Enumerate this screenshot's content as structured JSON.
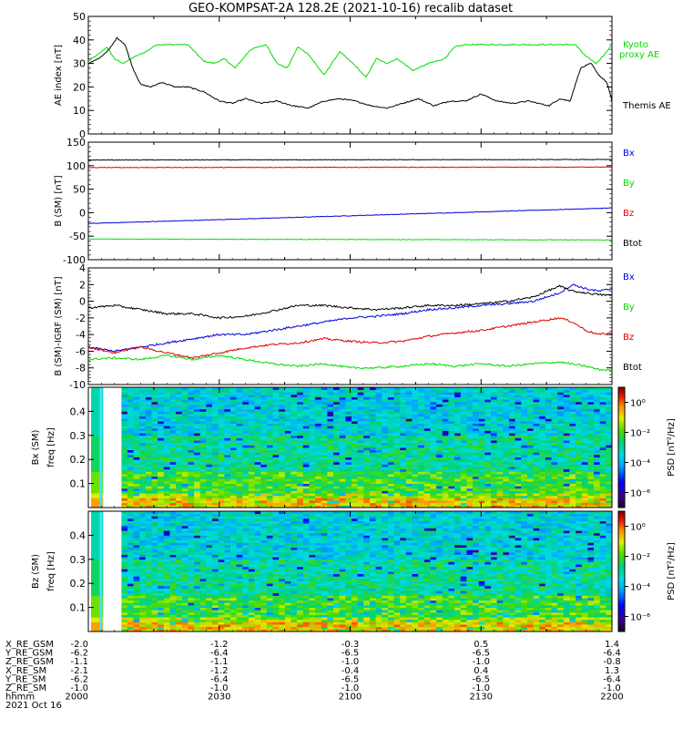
{
  "title": "GEO-KOMPSAT-2A 128.2E (2021-10-16) recalib dataset",
  "colors": {
    "black": "#000000",
    "green": "#00dd00",
    "blue": "#0000dd",
    "red": "#dd0000"
  },
  "chart_data": [
    {
      "id": "ae",
      "type": "line",
      "ylabel": "AE index [nT]",
      "ylim": [
        0,
        50
      ],
      "yticks": [
        0,
        10,
        20,
        30,
        40,
        50
      ],
      "x": [
        0,
        0.25,
        0.5,
        0.75,
        1.0,
        1.25,
        1.5,
        1.75,
        2.0
      ],
      "series": [
        {
          "name": "Kyoto proxy AE",
          "color": "green",
          "labelLines": [
            "Kyoto",
            "proxy AE"
          ],
          "x": [
            0,
            0.04,
            0.07,
            0.1,
            0.13,
            0.18,
            0.22,
            0.26,
            0.32,
            0.38,
            0.44,
            0.48,
            0.52,
            0.56,
            0.62,
            0.68,
            0.72,
            0.76,
            0.8,
            0.84,
            0.9,
            0.96,
            1.02,
            1.06,
            1.1,
            1.14,
            1.18,
            1.24,
            1.3,
            1.36,
            1.4,
            1.44,
            1.5,
            1.56,
            1.62,
            1.68,
            1.74,
            1.8,
            1.86,
            1.9,
            1.94,
            1.98,
            2.0
          ],
          "y": [
            31,
            34,
            37,
            32,
            30,
            33,
            35,
            38,
            38,
            38,
            31,
            30,
            32,
            28,
            36,
            38,
            30,
            28,
            37,
            34,
            25,
            35,
            29,
            24,
            32,
            30,
            32,
            27,
            30,
            32,
            37,
            38,
            38,
            38,
            38,
            38,
            38,
            38,
            38,
            33,
            30,
            35,
            38
          ]
        },
        {
          "name": "Themis AE",
          "color": "black",
          "labelLines": [
            "Themis AE"
          ],
          "x": [
            0,
            0.04,
            0.08,
            0.11,
            0.14,
            0.17,
            0.2,
            0.24,
            0.28,
            0.33,
            0.38,
            0.44,
            0.5,
            0.55,
            0.6,
            0.66,
            0.72,
            0.78,
            0.84,
            0.9,
            0.96,
            1.02,
            1.08,
            1.14,
            1.2,
            1.26,
            1.32,
            1.38,
            1.44,
            1.5,
            1.56,
            1.62,
            1.68,
            1.72,
            1.76,
            1.8,
            1.84,
            1.88,
            1.92,
            1.95,
            1.98,
            2.0
          ],
          "y": [
            30,
            32,
            36,
            41,
            38,
            28,
            21,
            20,
            22,
            20,
            20,
            18,
            14,
            13,
            15,
            13,
            14,
            12,
            11,
            14,
            15,
            14,
            12,
            11,
            13,
            15,
            12,
            14,
            14,
            17,
            14,
            13,
            14,
            13,
            12,
            15,
            14,
            28,
            30,
            25,
            22,
            14
          ]
        }
      ]
    },
    {
      "id": "bsm",
      "type": "line",
      "ylabel": "B (SM) [nT]",
      "ylim": [
        -100,
        150
      ],
      "yticks": [
        -100,
        -50,
        0,
        50,
        100,
        150
      ],
      "series": [
        {
          "name": "Bx",
          "color": "blue",
          "x": [
            0,
            2.0
          ],
          "y": [
            -23,
            10
          ]
        },
        {
          "name": "By",
          "color": "green",
          "x": [
            0,
            2.0
          ],
          "y": [
            -56,
            -58
          ]
        },
        {
          "name": "Bz",
          "color": "red",
          "x": [
            0,
            2.0
          ],
          "y": [
            96,
            97
          ]
        },
        {
          "name": "Btot",
          "color": "black",
          "x": [
            0,
            2.0
          ],
          "y": [
            112,
            113
          ]
        }
      ]
    },
    {
      "id": "bdiff",
      "type": "line",
      "ylabel": "B (SM)-IGRF (SM) [nT]",
      "ylim": [
        -10,
        4
      ],
      "yticks": [
        -10,
        -8,
        -6,
        -4,
        -2,
        0,
        2,
        4
      ],
      "series": [
        {
          "name": "Bx",
          "color": "blue",
          "x": [
            0,
            0.1,
            0.2,
            0.3,
            0.4,
            0.5,
            0.6,
            0.7,
            0.8,
            0.9,
            1.0,
            1.1,
            1.2,
            1.3,
            1.4,
            1.5,
            1.6,
            1.7,
            1.75,
            1.8,
            1.85,
            1.9,
            1.95,
            2.0
          ],
          "y": [
            -5.5,
            -6,
            -5.5,
            -5,
            -4.5,
            -4,
            -4,
            -3.5,
            -3,
            -2.5,
            -2,
            -1.8,
            -1.5,
            -1,
            -0.8,
            -0.5,
            -0.3,
            0,
            0.5,
            1,
            2,
            1.5,
            1.2,
            1.5
          ]
        },
        {
          "name": "By",
          "color": "green",
          "x": [
            0,
            0.1,
            0.2,
            0.3,
            0.4,
            0.5,
            0.6,
            0.7,
            0.8,
            0.9,
            1.0,
            1.1,
            1.2,
            1.3,
            1.4,
            1.5,
            1.6,
            1.7,
            1.8,
            1.9,
            1.95,
            2.0
          ],
          "y": [
            -7,
            -6.8,
            -7,
            -6.5,
            -7,
            -6.5,
            -7,
            -7.5,
            -7.8,
            -7.5,
            -8,
            -8,
            -7.8,
            -7.5,
            -7.8,
            -7.5,
            -7.8,
            -7.5,
            -7.3,
            -7.8,
            -8.2,
            -8.3
          ]
        },
        {
          "name": "Bz",
          "color": "red",
          "x": [
            0,
            0.1,
            0.15,
            0.2,
            0.3,
            0.4,
            0.5,
            0.6,
            0.7,
            0.8,
            0.9,
            1.0,
            1.1,
            1.2,
            1.3,
            1.4,
            1.5,
            1.6,
            1.7,
            1.8,
            1.85,
            1.9,
            1.95,
            2.0
          ],
          "y": [
            -5.5,
            -6.2,
            -5.8,
            -5.5,
            -6.2,
            -6.8,
            -6.2,
            -5.6,
            -5.2,
            -5,
            -4.5,
            -4.8,
            -5,
            -4.8,
            -4.2,
            -3.8,
            -3.5,
            -3,
            -2.5,
            -2,
            -2.5,
            -3.5,
            -4,
            -3.8
          ]
        },
        {
          "name": "Btot",
          "color": "black",
          "x": [
            0,
            0.1,
            0.2,
            0.3,
            0.4,
            0.5,
            0.6,
            0.7,
            0.8,
            0.9,
            1.0,
            1.1,
            1.2,
            1.3,
            1.4,
            1.5,
            1.6,
            1.7,
            1.75,
            1.8,
            1.85,
            1.9,
            1.95,
            2.0
          ],
          "y": [
            -0.8,
            -0.5,
            -1,
            -1.5,
            -1.5,
            -2,
            -1.8,
            -1.2,
            -0.5,
            -0.5,
            -0.8,
            -1,
            -0.8,
            -0.5,
            -0.5,
            -0.3,
            0,
            0.5,
            1.2,
            1.8,
            1.2,
            1,
            0.8,
            0.7
          ]
        }
      ]
    },
    {
      "id": "spec-bx",
      "type": "heatmap",
      "ylabel": "Bx (SM) freq [Hz]",
      "yticks": [
        0.1,
        0.2,
        0.3,
        0.4
      ],
      "ylim": [
        0,
        0.5
      ],
      "colorbar_label": "PSD [nT²/Hz]",
      "colorbar_ticks": [
        "10⁰",
        "10⁻²",
        "10⁻⁴",
        "10⁻⁶"
      ],
      "colorbar_exponents": [
        0,
        -2,
        -4,
        -6
      ]
    },
    {
      "id": "spec-bz",
      "type": "heatmap",
      "ylabel": "Bz (SM) freq [Hz]",
      "yticks": [
        0.1,
        0.2,
        0.3,
        0.4
      ],
      "ylim": [
        0,
        0.5
      ],
      "colorbar_label": "PSD [nT²/Hz]",
      "colorbar_ticks": [
        "10⁰",
        "10⁻²",
        "10⁻⁴",
        "10⁻⁶"
      ],
      "colorbar_exponents": [
        0,
        -2,
        -4,
        -6
      ]
    }
  ],
  "ephemeris": {
    "rows": [
      {
        "label": "X_RE_GSM",
        "values": [
          "-2.0",
          "-1.2",
          "-0.3",
          "0.5",
          "1.4"
        ]
      },
      {
        "label": "Y_RE_GSM",
        "values": [
          "-6.2",
          "-6.4",
          "-6.5",
          "-6.5",
          "-6.4"
        ]
      },
      {
        "label": "Z_RE_GSM",
        "values": [
          "-1.1",
          "-1.1",
          "-1.0",
          "-1.0",
          "-0.8"
        ]
      },
      {
        "label": "X_RE_SM",
        "values": [
          "-2.1",
          "-1.2",
          "-0.4",
          "0.4",
          "1.3"
        ]
      },
      {
        "label": "Y_RE_SM",
        "values": [
          "-6.2",
          "-6.4",
          "-6.5",
          "-6.5",
          "-6.4"
        ]
      },
      {
        "label": "Z_RE_SM",
        "values": [
          "-1.0",
          "-1.0",
          "-1.0",
          "-1.0",
          "-1.0"
        ]
      },
      {
        "label": "hhmm",
        "values": [
          "2000",
          "2030",
          "2100",
          "2130",
          "2200"
        ]
      }
    ],
    "date": "2021 Oct 16"
  }
}
